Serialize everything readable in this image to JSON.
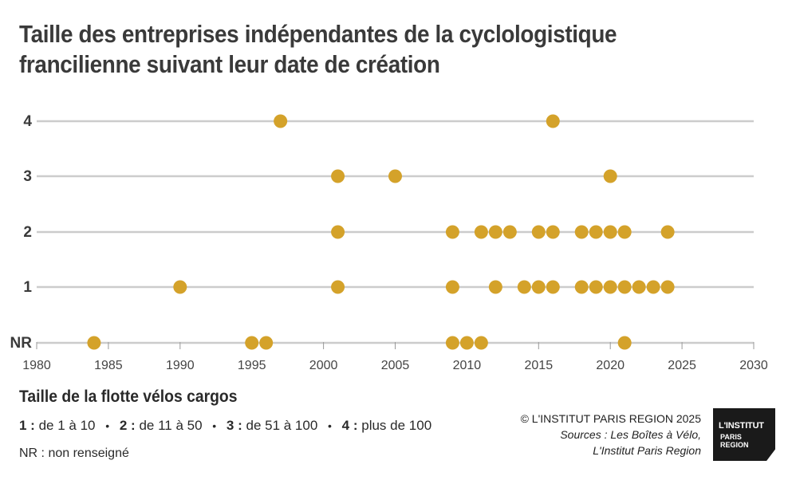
{
  "title": {
    "line1": "Taille des entreprises indépendantes de la cyclologistique",
    "line2": "francilienne suivant leur date de création"
  },
  "chart_data": {
    "type": "scatter",
    "title": "Taille des entreprises indépendantes de la cyclologistique francilienne suivant leur date de création",
    "xlabel": "",
    "ylabel": "",
    "xlim": [
      1980,
      2030
    ],
    "x_ticks": [
      "1980",
      "1985",
      "1990",
      "1995",
      "2000",
      "2005",
      "2010",
      "2015",
      "2020",
      "2025",
      "2030"
    ],
    "categories": [
      "NR",
      "1",
      "2",
      "3",
      "4"
    ],
    "grid": true,
    "marker_color": "#D4A22A",
    "line_color": "#CCCCCC",
    "series": [
      {
        "category": "4",
        "x": [
          1997,
          2016
        ]
      },
      {
        "category": "3",
        "x": [
          2001,
          2005,
          2020
        ]
      },
      {
        "category": "2",
        "x": [
          2001,
          2009,
          2011,
          2012,
          2013,
          2015,
          2016,
          2018,
          2019,
          2020,
          2021,
          2024
        ]
      },
      {
        "category": "1",
        "x": [
          1990,
          2001,
          2009,
          2012,
          2014,
          2015,
          2016,
          2018,
          2019,
          2020,
          2021,
          2022,
          2023,
          2024
        ]
      },
      {
        "category": "NR",
        "x": [
          1984,
          1995,
          1996,
          2009,
          2010,
          2011,
          2021
        ]
      }
    ]
  },
  "legend": {
    "title": "Taille de la flotte vélos cargos",
    "items": [
      {
        "key": "1 :",
        "text": "de 1 à 10"
      },
      {
        "key": "2 :",
        "text": "de 11 à 50"
      },
      {
        "key": "3 :",
        "text": "de 51 à 100"
      },
      {
        "key": "4 :",
        "text": "plus de 100"
      }
    ],
    "separator": "•",
    "nr": "NR : non renseigné"
  },
  "credits": {
    "copyright": "© L'INSTITUT PARIS REGION 2025",
    "sources_line1": "Sources : Les Boîtes à Vélo,",
    "sources_line2": "L'Institut Paris Region"
  },
  "logo": {
    "line1": "L'INSTITUT",
    "line2": "PARIS",
    "line3": "REGION"
  }
}
